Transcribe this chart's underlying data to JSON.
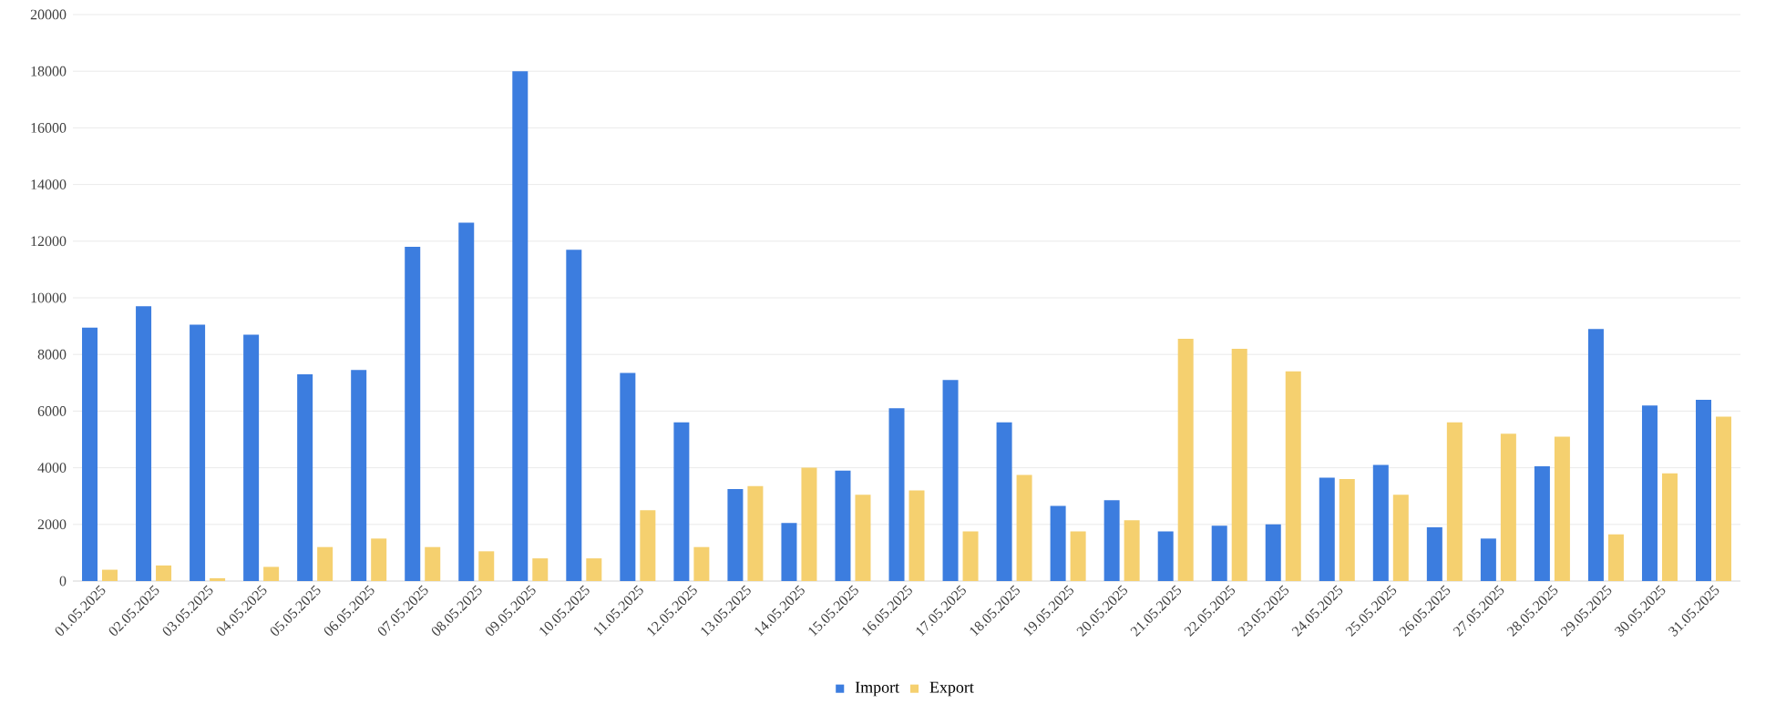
{
  "chart_data": {
    "type": "bar",
    "categories": [
      "01.05.2025",
      "02.05.2025",
      "03.05.2025",
      "04.05.2025",
      "05.05.2025",
      "06.05.2025",
      "07.05.2025",
      "08.05.2025",
      "09.05.2025",
      "10.05.2025",
      "11.05.2025",
      "12.05.2025",
      "13.05.2025",
      "14.05.2025",
      "15.05.2025",
      "16.05.2025",
      "17.05.2025",
      "18.05.2025",
      "19.05.2025",
      "20.05.2025",
      "21.05.2025",
      "22.05.2025",
      "23.05.2025",
      "24.05.2025",
      "25.05.2025",
      "26.05.2025",
      "27.05.2025",
      "28.05.2025",
      "29.05.2025",
      "30.05.2025",
      "31.05.2025"
    ],
    "series": [
      {
        "name": "Import",
        "color": "#3c7ddf",
        "values": [
          8950,
          9700,
          9050,
          8700,
          7300,
          7450,
          11800,
          12650,
          18000,
          11700,
          7350,
          5600,
          3250,
          2050,
          3900,
          6100,
          7100,
          5600,
          2650,
          2850,
          1750,
          1950,
          2000,
          3650,
          4100,
          1900,
          1500,
          4050,
          8900,
          6200,
          6400
        ]
      },
      {
        "name": "Export",
        "color": "#f5d06f",
        "values": [
          400,
          550,
          100,
          500,
          1200,
          1500,
          1200,
          1050,
          800,
          800,
          2500,
          1200,
          3350,
          4000,
          3050,
          3200,
          1750,
          3750,
          1750,
          2150,
          8550,
          8200,
          7400,
          3600,
          3050,
          5600,
          5200,
          5100,
          1650,
          3800,
          5800
        ]
      }
    ],
    "ylim": [
      0,
      20000
    ],
    "yticks": [
      0,
      2000,
      4000,
      6000,
      8000,
      10000,
      12000,
      14000,
      16000,
      18000,
      20000
    ],
    "grid": "y",
    "legend": "bottom"
  }
}
